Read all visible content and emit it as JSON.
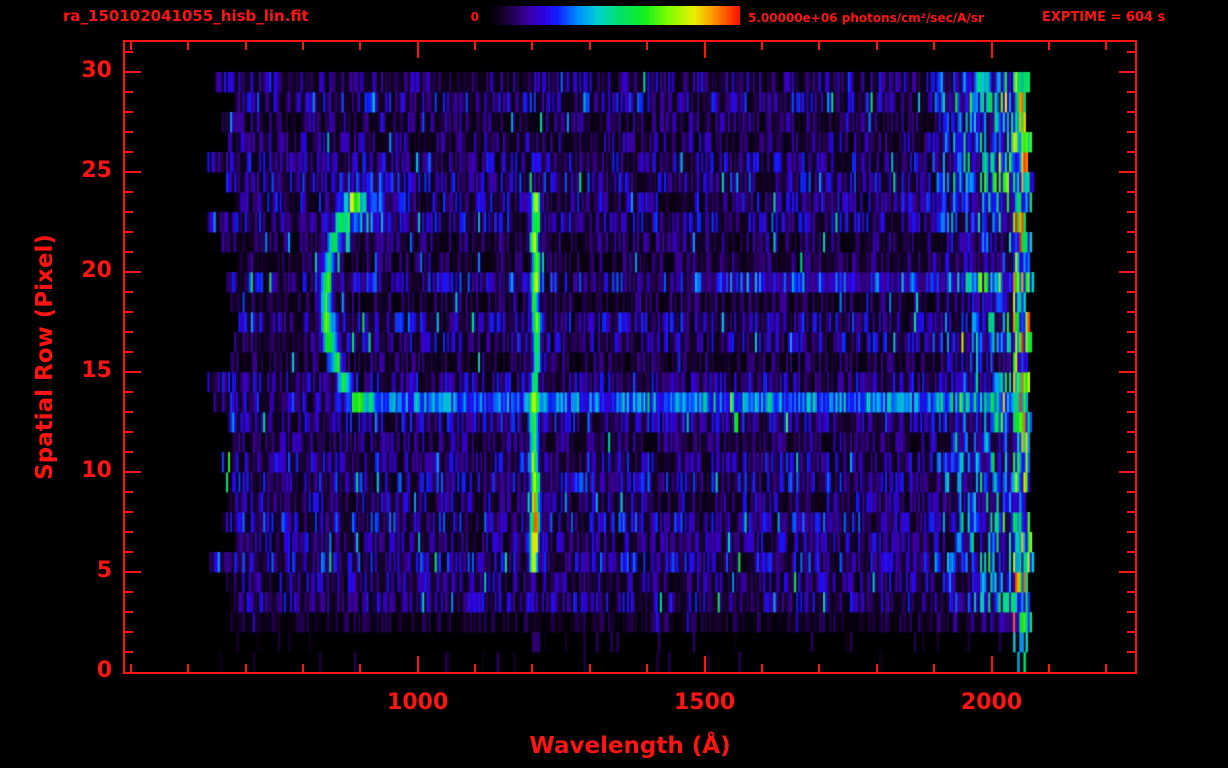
{
  "window": {
    "background": "#000000",
    "accent_color": "#ff1414"
  },
  "header": {
    "filename": "ra_150102041055_hisb_lin.fit",
    "colorbar_min_label": "0",
    "colorbar_max_label": "5.00000e+06 photons/cm²/sec/A/sr",
    "exptime_label": "EXPTIME = 604 s"
  },
  "chart_data": {
    "type": "heatmap",
    "title": "ra_150102041055_hisb_lin.fit",
    "xlabel": "Wavelength (Å)",
    "ylabel": "Spatial Row (Pixel)",
    "xlim": [
      490,
      2250
    ],
    "ylim": [
      0,
      31.5
    ],
    "xticks": [
      1000,
      1500,
      2000
    ],
    "xminor_step": 100,
    "yticks": [
      0,
      5,
      10,
      15,
      20,
      25,
      30
    ],
    "yminor_step": 1,
    "colorbar": {
      "min": 0,
      "max": 5000000,
      "max_label": "5.00000e+06",
      "units": "photons/cm²/sec/A/sr"
    },
    "exposure_seconds": 604,
    "grid": false,
    "data_extent": {
      "wavelength": [
        630,
        2072
      ],
      "rows": [
        0,
        30
      ]
    },
    "colormap_stops": [
      {
        "t": 0.0,
        "c": "#000000"
      },
      {
        "t": 0.05,
        "c": "#10001e"
      },
      {
        "t": 0.1,
        "c": "#250057"
      },
      {
        "t": 0.16,
        "c": "#3c00a0"
      },
      {
        "t": 0.22,
        "c": "#3000e0"
      },
      {
        "t": 0.28,
        "c": "#1020ff"
      },
      {
        "t": 0.36,
        "c": "#0090ff"
      },
      {
        "t": 0.44,
        "c": "#00d0d0"
      },
      {
        "t": 0.52,
        "c": "#00e070"
      },
      {
        "t": 0.62,
        "c": "#10ee20"
      },
      {
        "t": 0.72,
        "c": "#80ff00"
      },
      {
        "t": 0.82,
        "c": "#e8f000"
      },
      {
        "t": 0.9,
        "c": "#ff9000"
      },
      {
        "t": 1.0,
        "c": "#ff1000"
      }
    ],
    "features": [
      {
        "name": "noise-background",
        "base_intensity": 0.03,
        "variance": 0.22,
        "description": "low-level purple/blue detector noise over rows 2-30, wavelengths 630-2072"
      },
      {
        "name": "emission-line",
        "wavelength_center": 1205,
        "wavelength_sigma": 7,
        "rows": [
          5,
          24
        ],
        "peak_intensity": 0.78,
        "description": "bright vertical green/yellow emission line, brightest near rows 6-9 and 20-23"
      },
      {
        "name": "arc",
        "wavelength_vertex": 840,
        "wavelength_back": 945,
        "row_center": 18.6,
        "row_halfspan": 5.7,
        "thickness_sigma": 11,
        "intensity": 0.42,
        "description": "cyan left-opening arc spanning rows 13-24"
      },
      {
        "name": "arc-top-blob",
        "row": 23.2,
        "wavelength": 905,
        "row_sigma": 1.1,
        "wavelength_sigma": 40,
        "intensity": 0.3,
        "description": "bright cyan blob at top of arc"
      },
      {
        "name": "horizontal-band-1",
        "row": 13.4,
        "row_sigma": 0.55,
        "wavelength_range": [
          870,
          2060
        ],
        "intensity": 0.2,
        "description": "blue horizontal band near row 13"
      },
      {
        "name": "horizontal-band-2",
        "row": 19.8,
        "row_sigma": 0.5,
        "wavelength_range": [
          1480,
          2060
        ],
        "intensity": 0.12,
        "description": "faint blue horizontal band near row 20"
      },
      {
        "name": "bright-right-column",
        "wavelength_range": [
          2037,
          2072
        ],
        "rows": [
          1,
          30
        ],
        "intensity_range": [
          0.18,
          1.0
        ],
        "description": "bright green/yellow/red speckled column at right edge"
      },
      {
        "name": "elevated-right-zone",
        "wavelength_range": [
          1880,
          2037
        ],
        "gain": 2.2,
        "description": "elevated blue noise approaching right edge"
      }
    ]
  }
}
